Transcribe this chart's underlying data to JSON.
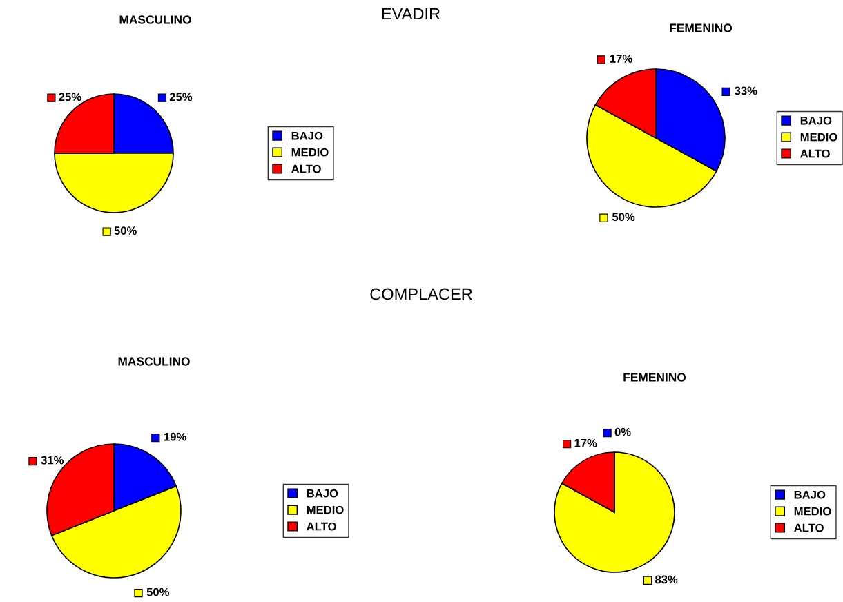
{
  "chart_data": [
    {
      "type": "pie",
      "title": "MASCULINO",
      "annotations": [
        "EVADIR"
      ],
      "categories": [
        "BAJO",
        "MEDIO",
        "ALTO"
      ],
      "values": [
        25,
        50,
        25
      ],
      "value_labels": [
        "25%",
        "50%",
        "25%"
      ],
      "colors": [
        "#0000ff",
        "#ffff00",
        "#ff0000"
      ],
      "legend": "right"
    },
    {
      "type": "pie",
      "title": "FEMENINO",
      "categories": [
        "BAJO",
        "MEDIO",
        "ALTO"
      ],
      "values": [
        33,
        50,
        17
      ],
      "value_labels": [
        "33%",
        "50%",
        "17%"
      ],
      "colors": [
        "#0000ff",
        "#ffff00",
        "#ff0000"
      ],
      "legend": "right"
    },
    {
      "type": "pie",
      "title": "MASCULINO",
      "annotations": [
        "COMPLACER"
      ],
      "categories": [
        "BAJO",
        "MEDIO",
        "ALTO"
      ],
      "values": [
        19,
        50,
        31
      ],
      "value_labels": [
        "19%",
        "50%",
        "31%"
      ],
      "colors": [
        "#0000ff",
        "#ffff00",
        "#ff0000"
      ],
      "legend": "right"
    },
    {
      "type": "pie",
      "title": "FEMENINO",
      "categories": [
        "BAJO",
        "MEDIO",
        "ALTO"
      ],
      "values": [
        0,
        83,
        17
      ],
      "value_labels": [
        "0%",
        "83%",
        "17%"
      ],
      "colors": [
        "#0000ff",
        "#ffff00",
        "#ff0000"
      ],
      "legend": "right"
    }
  ]
}
